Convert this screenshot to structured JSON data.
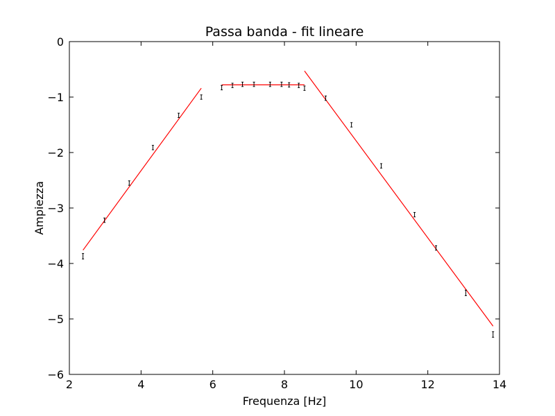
{
  "chart_data": {
    "type": "scatter",
    "title": "Passa banda - fit lineare",
    "xlabel": "Frequenza [Hz]",
    "ylabel": "Ampiezza",
    "xlim": [
      2,
      14
    ],
    "ylim": [
      -6,
      0
    ],
    "xticks": [
      2,
      4,
      6,
      8,
      10,
      12,
      14
    ],
    "yticks": [
      0,
      -1,
      -2,
      -3,
      -4,
      -5,
      -6
    ],
    "grid": false,
    "points": [
      {
        "x": 2.38,
        "y": -3.87,
        "err": 0.05
      },
      {
        "x": 2.98,
        "y": -3.22,
        "err": 0.04
      },
      {
        "x": 3.67,
        "y": -2.55,
        "err": 0.04
      },
      {
        "x": 4.33,
        "y": -1.91,
        "err": 0.04
      },
      {
        "x": 5.05,
        "y": -1.33,
        "err": 0.04
      },
      {
        "x": 5.68,
        "y": -1.0,
        "err": 0.04
      },
      {
        "x": 6.25,
        "y": -0.83,
        "err": 0.04
      },
      {
        "x": 6.55,
        "y": -0.79,
        "err": 0.04
      },
      {
        "x": 6.83,
        "y": -0.77,
        "err": 0.04
      },
      {
        "x": 7.15,
        "y": -0.77,
        "err": 0.04
      },
      {
        "x": 7.6,
        "y": -0.77,
        "err": 0.04
      },
      {
        "x": 7.92,
        "y": -0.77,
        "err": 0.04
      },
      {
        "x": 8.13,
        "y": -0.78,
        "err": 0.04
      },
      {
        "x": 8.4,
        "y": -0.79,
        "err": 0.04
      },
      {
        "x": 8.56,
        "y": -0.84,
        "err": 0.04
      },
      {
        "x": 9.15,
        "y": -1.02,
        "err": 0.04
      },
      {
        "x": 9.87,
        "y": -1.5,
        "err": 0.04
      },
      {
        "x": 10.7,
        "y": -2.24,
        "err": 0.04
      },
      {
        "x": 11.63,
        "y": -3.12,
        "err": 0.04
      },
      {
        "x": 12.23,
        "y": -3.72,
        "err": 0.04
      },
      {
        "x": 13.06,
        "y": -4.53,
        "err": 0.05
      },
      {
        "x": 13.82,
        "y": -5.28,
        "err": 0.05
      }
    ],
    "fit_lines": [
      {
        "x": [
          2.38,
          5.68
        ],
        "y": [
          -3.76,
          -0.84
        ],
        "color": "#ff0000"
      },
      {
        "x": [
          6.25,
          8.56
        ],
        "y": [
          -0.78,
          -0.78
        ],
        "color": "#ff0000"
      },
      {
        "x": [
          8.56,
          13.82
        ],
        "y": [
          -0.53,
          -5.13
        ],
        "color": "#ff0000"
      }
    ],
    "point_color": "#000000"
  }
}
